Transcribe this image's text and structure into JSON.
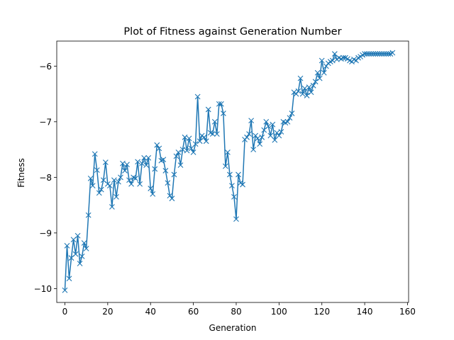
{
  "chart_data": {
    "type": "line",
    "title": "Plot of Fitness against Generation Number",
    "xlabel": "Generation",
    "ylabel": "Fitness",
    "xlim": [
      -3.8,
      160.5
    ],
    "ylim": [
      -10.25,
      -5.55
    ],
    "xticks": [
      0,
      20,
      40,
      60,
      80,
      100,
      120,
      140,
      160
    ],
    "yticks": [
      -10,
      -9,
      -8,
      -7,
      -6
    ],
    "ytick_labels": [
      "−10",
      "−9",
      "−8",
      "−7",
      "−6"
    ],
    "grid": false,
    "marker": "x",
    "color": "#1f77b4",
    "series": [
      {
        "x": [
          0,
          1,
          2,
          3,
          4,
          5,
          6,
          7,
          8,
          9,
          10,
          11,
          12,
          13,
          14,
          15,
          16,
          17,
          18,
          19,
          20,
          21,
          22,
          23,
          24,
          25,
          26,
          27,
          28,
          29,
          30,
          31,
          32,
          33,
          34,
          35,
          36,
          37,
          38,
          39,
          40,
          41,
          42,
          43,
          44,
          45,
          46,
          47,
          48,
          49,
          50,
          51,
          52,
          53,
          54,
          55,
          56,
          57,
          58,
          59,
          60,
          61,
          62,
          63,
          64,
          65,
          66,
          67,
          68,
          69,
          70,
          71,
          72,
          73,
          74,
          75,
          76,
          77,
          78,
          79,
          80,
          81,
          82,
          83,
          84,
          85,
          86,
          87,
          88,
          89,
          90,
          91,
          92,
          93,
          94,
          95,
          96,
          97,
          98,
          99,
          100,
          101,
          102,
          103,
          104,
          105,
          106,
          107,
          108,
          109,
          110,
          111,
          112,
          113,
          114,
          115,
          116,
          117,
          118,
          119,
          120,
          121,
          122,
          123,
          124,
          125,
          126,
          127,
          128,
          129,
          130,
          131,
          132,
          133,
          134,
          135,
          136,
          137,
          138,
          139,
          140,
          141,
          142,
          143,
          144,
          145,
          146,
          147,
          148,
          149,
          150,
          151,
          152,
          153
        ],
        "values": [
          -10.03,
          -9.23,
          -9.82,
          -9.45,
          -9.12,
          -9.38,
          -9.05,
          -9.55,
          -9.42,
          -9.18,
          -9.28,
          -8.68,
          -8.02,
          -8.15,
          -7.58,
          -7.87,
          -8.28,
          -8.22,
          -8.05,
          -7.73,
          -8.12,
          -8.15,
          -8.53,
          -8.05,
          -8.35,
          -8.08,
          -8.0,
          -7.75,
          -7.88,
          -7.77,
          -8.05,
          -8.12,
          -8.0,
          -8.02,
          -7.72,
          -8.12,
          -7.75,
          -7.65,
          -7.78,
          -7.65,
          -8.2,
          -8.3,
          -7.85,
          -7.42,
          -7.48,
          -7.7,
          -7.68,
          -7.88,
          -8.1,
          -8.33,
          -8.38,
          -7.95,
          -7.62,
          -7.55,
          -7.78,
          -7.5,
          -7.28,
          -7.52,
          -7.3,
          -7.48,
          -7.55,
          -7.4,
          -6.55,
          -7.35,
          -7.25,
          -7.28,
          -7.35,
          -6.78,
          -7.2,
          -7.22,
          -7.0,
          -7.22,
          -6.68,
          -6.68,
          -6.85,
          -7.8,
          -7.55,
          -7.95,
          -8.15,
          -8.35,
          -8.75,
          -7.95,
          -8.1,
          -8.13,
          -7.32,
          -7.28,
          -7.22,
          -6.98,
          -7.5,
          -7.25,
          -7.3,
          -7.4,
          -7.28,
          -7.15,
          -7.0,
          -7.08,
          -7.25,
          -7.05,
          -7.33,
          -7.2,
          -7.25,
          -7.18,
          -7.0,
          -7.02,
          -7.0,
          -6.93,
          -6.85,
          -6.47,
          -6.5,
          -6.45,
          -6.22,
          -6.5,
          -6.4,
          -6.53,
          -6.38,
          -6.47,
          -6.35,
          -6.28,
          -6.12,
          -6.22,
          -5.9,
          -6.12,
          -6.0,
          -5.95,
          -5.92,
          -5.9,
          -5.78,
          -5.88,
          -5.85,
          -5.87,
          -5.85,
          -5.85,
          -5.87,
          -5.9,
          -5.92,
          -5.88,
          -5.9,
          -5.85,
          -5.83,
          -5.8,
          -5.78,
          -5.78,
          -5.78,
          -5.78,
          -5.78,
          -5.78,
          -5.78,
          -5.78,
          -5.78,
          -5.78,
          -5.78,
          -5.78,
          -5.78,
          -5.76
        ]
      }
    ]
  }
}
